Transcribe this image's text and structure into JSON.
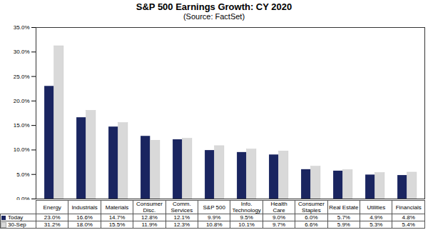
{
  "chart_data": {
    "type": "bar",
    "title": "S&P 500 Earnings Growth: CY 2020",
    "subtitle": "(Source: FactSet)",
    "categories": [
      "Energy",
      "Industrials",
      "Materials",
      "Consumer Disc.",
      "Comm. Services",
      "S&P 500",
      "Info. Technology",
      "Health Care",
      "Consumer Staples",
      "Real Estate",
      "Utilities",
      "Financials"
    ],
    "series": [
      {
        "name": "Today",
        "color": "#1a2560",
        "values": [
          23.0,
          16.6,
          14.7,
          12.8,
          12.1,
          9.9,
          9.5,
          9.0,
          6.0,
          5.7,
          4.9,
          4.8
        ],
        "value_labels": [
          "23.0%",
          "16.6%",
          "14.7%",
          "12.8%",
          "12.1%",
          "9.9%",
          "9.5%",
          "9.0%",
          "6.0%",
          "5.7%",
          "4.9%",
          "4.8%"
        ]
      },
      {
        "name": "30-Sep",
        "color": "#d9d9d9",
        "values": [
          31.2,
          18.0,
          15.5,
          11.9,
          12.3,
          10.8,
          10.1,
          9.7,
          6.6,
          5.9,
          5.3,
          5.4
        ],
        "value_labels": [
          "31.2%",
          "18.0%",
          "15.5%",
          "11.9%",
          "12.3%",
          "10.8%",
          "10.1%",
          "9.7%",
          "6.6%",
          "5.9%",
          "5.3%",
          "5.4%"
        ]
      }
    ],
    "ylim": [
      0,
      35
    ],
    "yticks": [
      {
        "value": 0,
        "label": "0.0%"
      },
      {
        "value": 5,
        "label": "5.0%"
      },
      {
        "value": 10,
        "label": "10.0%"
      },
      {
        "value": 15,
        "label": "15.0%"
      },
      {
        "value": 20,
        "label": "20.0%"
      },
      {
        "value": 25,
        "label": "25.0%"
      },
      {
        "value": 30,
        "label": "30.0%"
      },
      {
        "value": 35,
        "label": "35.0%"
      }
    ],
    "grid": false,
    "data_labels": true
  }
}
